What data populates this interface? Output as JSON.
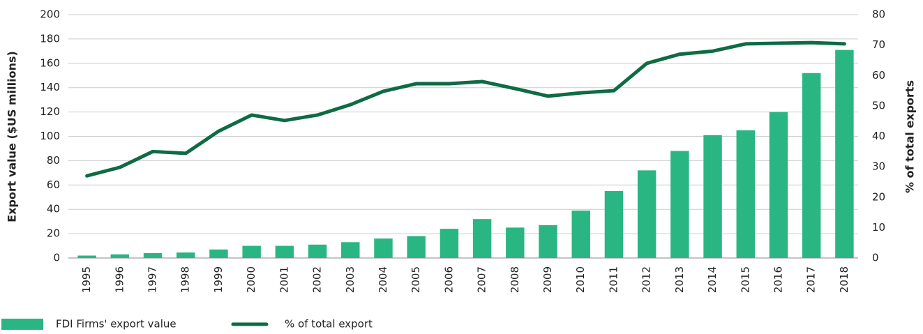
{
  "chart_data": {
    "type": "bar_line",
    "ylabel": "Export value ($US millions)",
    "y2label": "% of total exports",
    "categories": [
      "1995",
      "1996",
      "1997",
      "1998",
      "1999",
      "2000",
      "2001",
      "2002",
      "2003",
      "2004",
      "2005",
      "2006",
      "2007",
      "2008",
      "2009",
      "2010",
      "2011",
      "2012",
      "2013",
      "2014",
      "2015",
      "2016",
      "2017",
      "2018"
    ],
    "series": [
      {
        "name": "FDI Firms' export value",
        "type": "bar",
        "color": "#2ab683",
        "axis": "y",
        "values": [
          2,
          3,
          4,
          4.5,
          7,
          10,
          10,
          11,
          13,
          16,
          18,
          24,
          32,
          25,
          27,
          39,
          55,
          72,
          88,
          101,
          105,
          120,
          152,
          171
        ]
      },
      {
        "name": "% of total export",
        "type": "line",
        "color": "#0e6b43",
        "axis": "y2",
        "values": [
          27,
          29.8,
          35,
          34.4,
          41.7,
          47,
          45.2,
          47,
          50.4,
          54.8,
          57.3,
          57.3,
          58,
          55.7,
          53.2,
          54.3,
          55,
          64,
          67,
          68,
          70.4,
          70.6,
          70.8,
          70.4
        ]
      }
    ],
    "ylim": [
      0,
      200
    ],
    "yticks": [
      0,
      20,
      40,
      60,
      80,
      100,
      120,
      140,
      160,
      180,
      200
    ],
    "y2lim": [
      0,
      80
    ],
    "y2ticks": [
      0,
      10,
      20,
      30,
      40,
      50,
      60,
      70,
      80
    ],
    "grid": true,
    "legend": "bottom-left"
  }
}
